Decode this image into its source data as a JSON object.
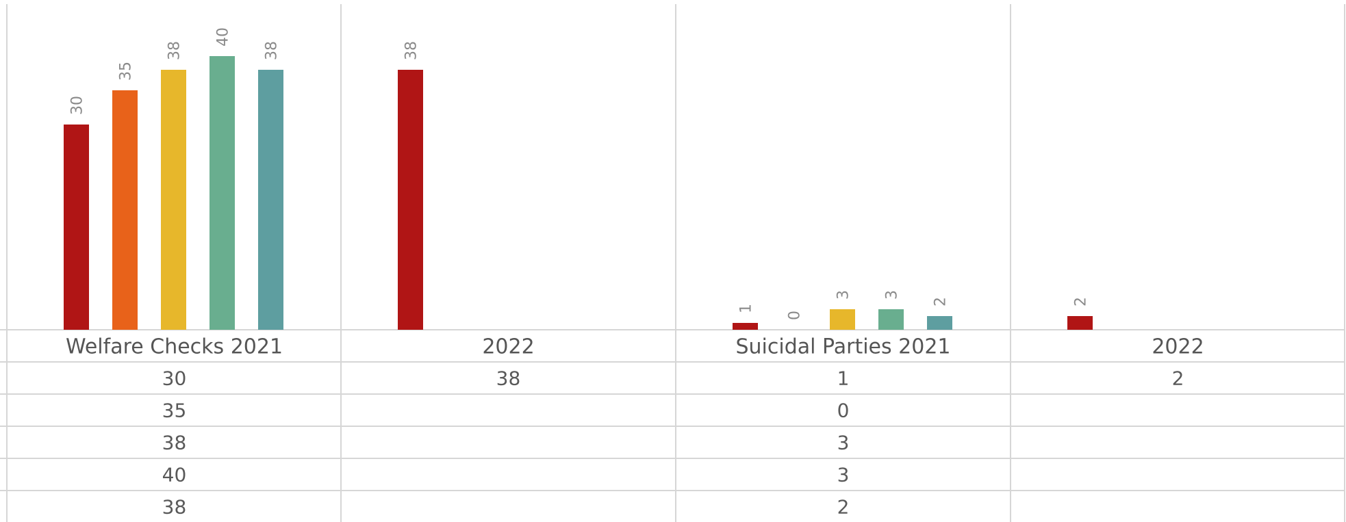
{
  "chart_data": {
    "type": "bar",
    "categories": [
      "Welfare Checks 2021",
      "2022",
      "Suicidal Parties 2021",
      "2022"
    ],
    "series": [
      {
        "values": [
          30,
          38,
          1,
          2
        ],
        "color": "#b01515"
      },
      {
        "values": [
          35,
          null,
          0,
          null
        ],
        "color": "#e8621a"
      },
      {
        "values": [
          38,
          null,
          3,
          null
        ],
        "color": "#e7b72b"
      },
      {
        "values": [
          40,
          null,
          3,
          null
        ],
        "color": "#69ae8f"
      },
      {
        "values": [
          38,
          null,
          2,
          null
        ],
        "color": "#5e9ea0"
      }
    ],
    "ylim": [
      0,
      45
    ],
    "data_labels": true,
    "data_table": true,
    "grid": false,
    "legend": "none"
  }
}
